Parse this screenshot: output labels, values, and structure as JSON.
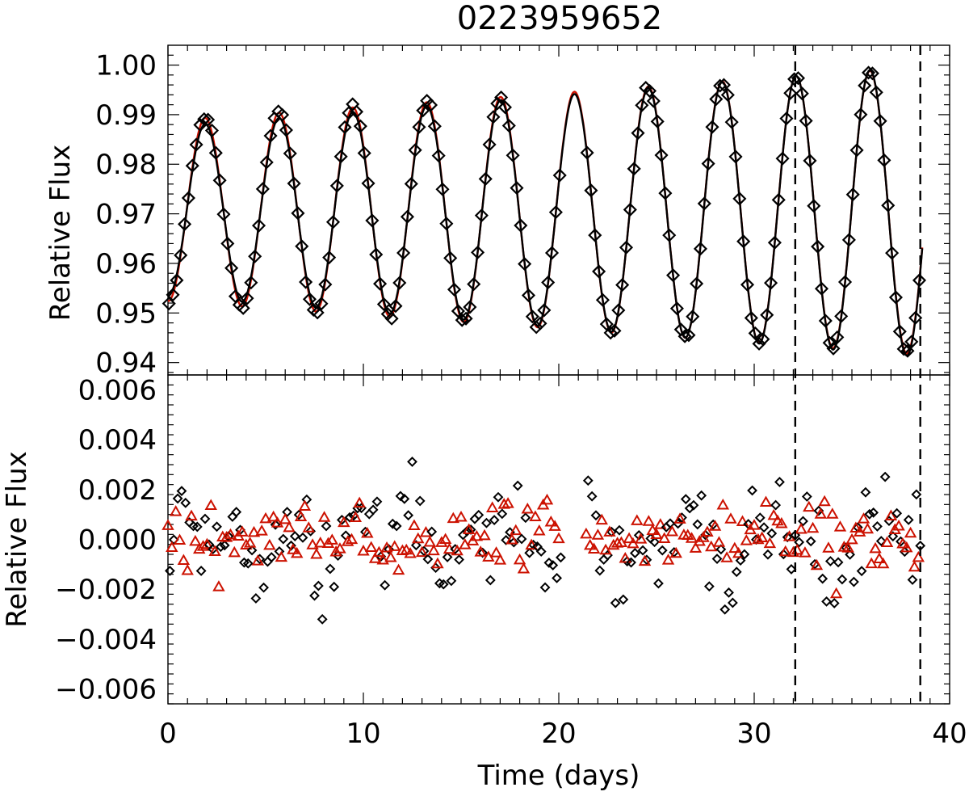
{
  "title": "0223959652",
  "colors": {
    "data": "#000000",
    "model": "#cc1100",
    "axis": "#000000"
  },
  "chart_data": [
    {
      "type": "line",
      "panel": "top",
      "title": "0223959652",
      "xlabel": "",
      "ylabel": "Relative Flux",
      "xlim": [
        0,
        40
      ],
      "ylim": [
        0.9375,
        1.004
      ],
      "yticks": [
        0.94,
        0.95,
        0.96,
        0.97,
        0.98,
        0.99,
        1.0
      ],
      "ytick_labels": [
        "0.94",
        "0.95",
        "0.96",
        "0.97",
        "0.98",
        "0.99",
        "1.00"
      ],
      "series": [
        {
          "name": "observed flux (black diamonds)",
          "marker": "diamond",
          "model": {
            "offset": 0.9705,
            "amp0": 0.0185,
            "amp_slope": 0.00027,
            "period": 3.78,
            "phase": 1.9
          }
        },
        {
          "name": "model 1 (black line)",
          "style": "line",
          "model": {
            "offset": 0.9705,
            "amp0": 0.017,
            "amp_slope": 0.00032,
            "period": 3.78,
            "phase": 1.9
          }
        },
        {
          "name": "model 2 (red line)",
          "style": "line",
          "model": {
            "offset": 0.9706,
            "amp0": 0.0182,
            "amp_slope": 0.00028,
            "period": 3.78,
            "phase": 1.9
          }
        }
      ],
      "vlines": [
        32.1,
        38.5
      ]
    },
    {
      "type": "scatter",
      "panel": "bottom",
      "xlabel": "Time (days)",
      "ylabel": "Relative Flux",
      "xlim": [
        0,
        40
      ],
      "ylim": [
        -0.0066,
        0.0066
      ],
      "xticks": [
        0,
        10,
        20,
        30,
        40
      ],
      "xtick_labels": [
        "0",
        "10",
        "20",
        "30",
        "40"
      ],
      "yticks": [
        -0.006,
        -0.004,
        -0.002,
        0.0,
        0.002,
        0.004,
        0.006
      ],
      "ytick_labels": [
        "−0.006",
        "−0.004",
        "−0.002",
        "0.000",
        "0.002",
        "0.004",
        "0.006"
      ],
      "series": [
        {
          "name": "residuals model 1 (black diamonds)",
          "marker": "diamond",
          "spread": 0.0018
        },
        {
          "name": "residuals model 2 (red triangles)",
          "marker": "triangle",
          "spread": 0.0012
        }
      ],
      "vlines": [
        32.1,
        38.5
      ]
    }
  ]
}
